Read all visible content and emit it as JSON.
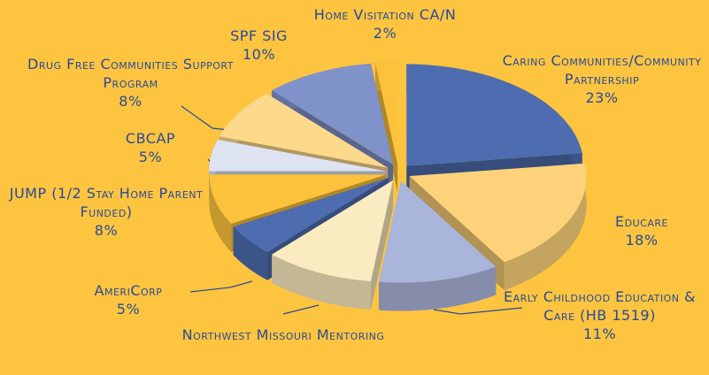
{
  "chart_data": {
    "type": "pie",
    "categories": [
      "Caring Communities/Community Partnership",
      "Educare",
      "Early Childhood Education & Care (HB 1519)",
      "Northwest Missouri Mentoring",
      "AmeriCorp",
      "JUMP (1/2 Stay Home Parent Funded)",
      "CBCAP",
      "Drug Free Communities Support Program",
      "SPF SIG",
      "Home Visitation CA/N"
    ],
    "values": [
      23,
      18,
      11,
      10,
      5,
      8,
      5,
      8,
      10,
      2
    ],
    "value_labels": [
      "23%",
      "18%",
      "11%",
      null,
      "5%",
      "8%",
      "5%",
      "8%",
      "10%",
      "2%"
    ],
    "colors": [
      "#4d6db0",
      "#fdd27a",
      "#aab5db",
      "#fbebc0",
      "#4d6db0",
      "#fcc23c",
      "#dfe4f2",
      "#fdd98c",
      "#7f92c9",
      "#fcc23c"
    ]
  }
}
